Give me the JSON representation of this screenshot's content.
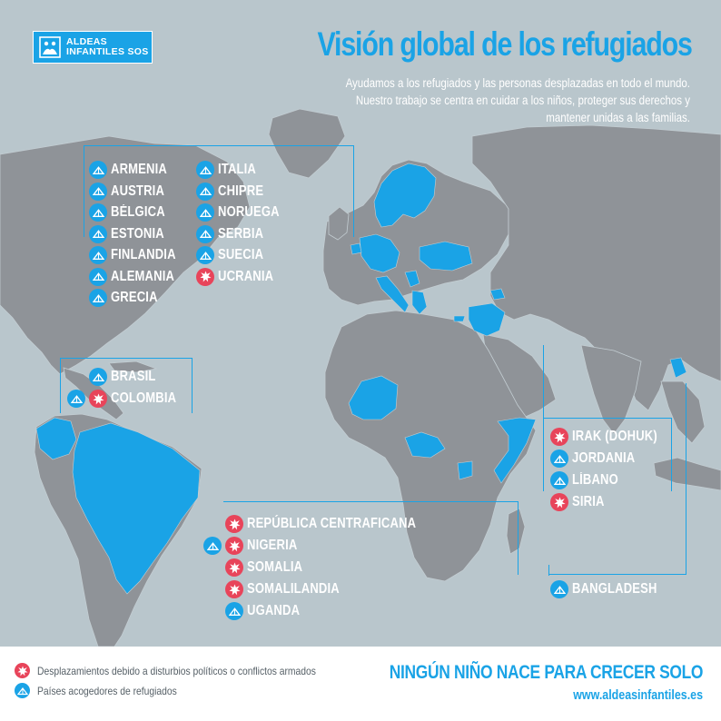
{
  "logo": {
    "line1": "ALDEAS",
    "line2": "INFANTILES SOS"
  },
  "title": "Visión global de los refugiados",
  "subtitle": {
    "line1": "Ayudamos a los refugiados y las personas desplazadas en todo el mundo.",
    "line2": "Nuestro trabajo se centra en cuidar a los niños, proteger sus derechos y",
    "line3": "mantener unidas a las familias."
  },
  "colors": {
    "host": "#1aa3e6",
    "conflict": "#e8445a",
    "land": "#8f9398",
    "ocean": "#b9c6cc"
  },
  "groups": {
    "europe": {
      "col1": [
        {
          "name": "ARMENIA",
          "markers": [
            "host"
          ]
        },
        {
          "name": "AUSTRIA",
          "markers": [
            "host"
          ]
        },
        {
          "name": "BÉLGICA",
          "markers": [
            "host"
          ]
        },
        {
          "name": "ESTONIA",
          "markers": [
            "host"
          ]
        },
        {
          "name": "FINLANDIA",
          "markers": [
            "host"
          ]
        },
        {
          "name": "ALEMANIA",
          "markers": [
            "host"
          ]
        },
        {
          "name": "GRECIA",
          "markers": [
            "host"
          ]
        }
      ],
      "col2": [
        {
          "name": "ITALIA",
          "markers": [
            "host"
          ]
        },
        {
          "name": "CHIPRE",
          "markers": [
            "host"
          ]
        },
        {
          "name": "NORUEGA",
          "markers": [
            "host"
          ]
        },
        {
          "name": "SERBIA",
          "markers": [
            "host"
          ]
        },
        {
          "name": "SUECIA",
          "markers": [
            "host"
          ]
        },
        {
          "name": "UCRANIA",
          "markers": [
            "conflict"
          ]
        }
      ]
    },
    "americas": [
      {
        "name": "BRASIL",
        "markers": [
          "host"
        ]
      },
      {
        "name": "COLOMBIA",
        "markers": [
          "host",
          "conflict"
        ]
      }
    ],
    "africa": [
      {
        "name": "REPÚBLICA CENTRAFICANA",
        "markers": [
          "conflict"
        ]
      },
      {
        "name": "NIGERIA",
        "markers": [
          "host",
          "conflict"
        ]
      },
      {
        "name": "SOMALIA",
        "markers": [
          "conflict"
        ]
      },
      {
        "name": "SOMALILANDIA",
        "markers": [
          "conflict"
        ]
      },
      {
        "name": "UGANDA",
        "markers": [
          "host"
        ]
      }
    ],
    "middle_east": [
      {
        "name": "IRAK (DOHUK)",
        "markers": [
          "conflict"
        ]
      },
      {
        "name": "JORDANIA",
        "markers": [
          "host"
        ]
      },
      {
        "name": "LÍBANO",
        "markers": [
          "host"
        ]
      },
      {
        "name": "SIRIA",
        "markers": [
          "conflict"
        ]
      }
    ],
    "asia": [
      {
        "name": "BANGLADESH",
        "markers": [
          "host"
        ]
      }
    ]
  },
  "legend": {
    "conflict": "Desplazamientos debido a disturbios políticos o conflictos armados",
    "host": "Países acogedores de refugiados"
  },
  "slogan": "NINGÚN NIÑO NACE PARA CRECER SOLO",
  "website": "www.aldeasinfantiles.es"
}
